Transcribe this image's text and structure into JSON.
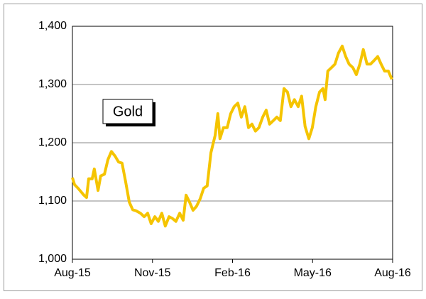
{
  "chart_data": {
    "type": "line",
    "x": [
      0,
      0.08,
      0.21,
      0.43,
      0.53,
      0.61,
      0.74,
      0.82,
      0.96,
      1.06,
      1.2,
      1.33,
      1.46,
      1.6,
      1.73,
      1.86,
      1.99,
      2.13,
      2.26,
      2.39,
      2.55,
      2.69,
      2.82,
      2.95,
      3.09,
      3.22,
      3.35,
      3.48,
      3.62,
      3.75,
      3.88,
      4.02,
      4.15,
      4.26,
      4.39,
      4.52,
      4.65,
      4.79,
      4.92,
      5.05,
      5.19,
      5.35,
      5.45,
      5.53,
      5.66,
      5.8,
      5.93,
      6.06,
      6.2,
      6.33,
      6.46,
      6.6,
      6.73,
      6.86,
      6.99,
      7.13,
      7.26,
      7.39,
      7.53,
      7.66,
      7.79,
      7.93,
      8.06,
      8.19,
      8.32,
      8.46,
      8.59,
      8.72,
      8.86,
      8.99,
      9.12,
      9.26,
      9.39,
      9.47,
      9.57,
      9.71,
      9.84,
      9.97,
      10.11,
      10.24,
      10.37,
      10.51,
      10.64,
      10.77,
      10.9,
      11.04,
      11.17,
      11.3,
      11.44,
      11.57,
      11.7,
      11.84,
      11.97
    ],
    "series": [
      {
        "name": "Gold",
        "color": "#f5c400",
        "values": [
          1140,
          1128,
          1122,
          1110,
          1106,
          1138,
          1138,
          1155,
          1118,
          1143,
          1146,
          1171,
          1185,
          1177,
          1167,
          1165,
          1134,
          1098,
          1085,
          1083,
          1079,
          1073,
          1079,
          1061,
          1073,
          1065,
          1079,
          1057,
          1073,
          1070,
          1065,
          1079,
          1067,
          1110,
          1098,
          1084,
          1091,
          1104,
          1122,
          1126,
          1183,
          1213,
          1250,
          1207,
          1226,
          1226,
          1250,
          1262,
          1268,
          1244,
          1262,
          1226,
          1232,
          1220,
          1226,
          1244,
          1256,
          1232,
          1238,
          1244,
          1238,
          1293,
          1287,
          1262,
          1274,
          1262,
          1280,
          1228,
          1207,
          1226,
          1262,
          1287,
          1293,
          1274,
          1323,
          1329,
          1335,
          1354,
          1366,
          1348,
          1335,
          1329,
          1317,
          1335,
          1360,
          1335,
          1335,
          1341,
          1348,
          1335,
          1323,
          1323,
          1309
        ]
      }
    ],
    "xlim": [
      0,
      12
    ],
    "xticks": [
      {
        "value": 0,
        "label": "Aug-15"
      },
      {
        "value": 3,
        "label": "Nov-15"
      },
      {
        "value": 6,
        "label": "Feb-16"
      },
      {
        "value": 9,
        "label": "May-16"
      },
      {
        "value": 12,
        "label": "Aug-16"
      }
    ],
    "ylim": [
      1000,
      1400
    ],
    "yticks": [
      {
        "value": 1000,
        "label": "1,000"
      },
      {
        "value": 1100,
        "label": "1,100"
      },
      {
        "value": 1200,
        "label": "1,200"
      },
      {
        "value": 1300,
        "label": "1,300"
      },
      {
        "value": 1400,
        "label": "1,400"
      }
    ],
    "grid": true,
    "legend": "upper left"
  }
}
